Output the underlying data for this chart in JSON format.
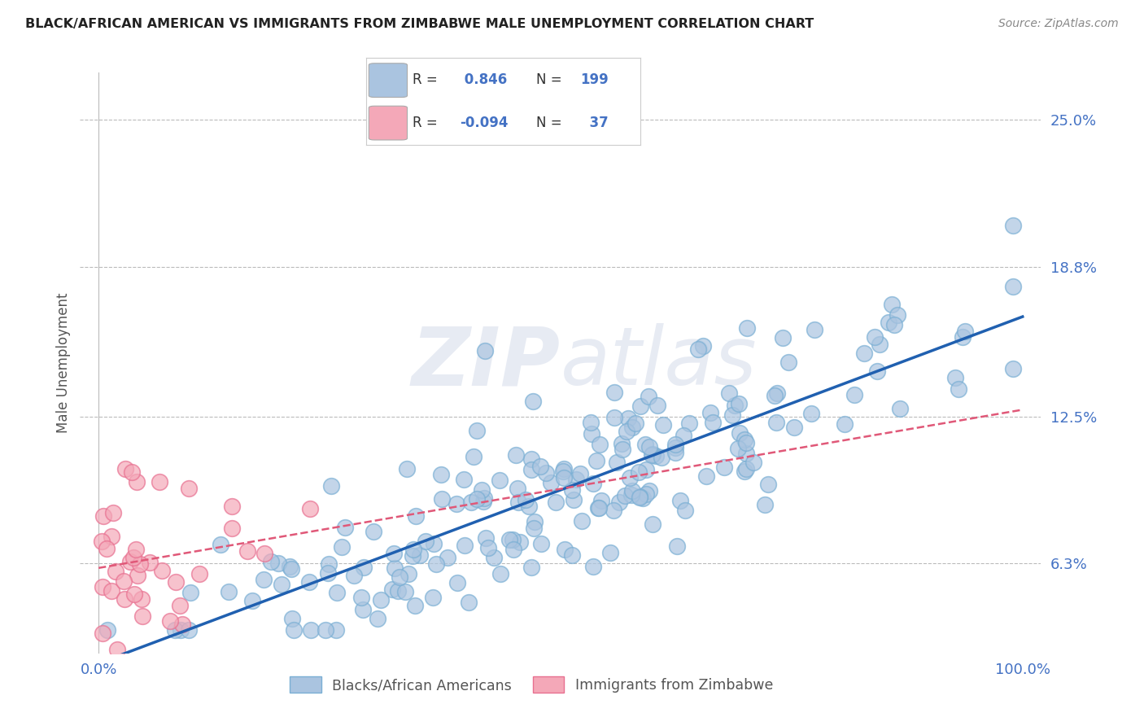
{
  "title": "BLACK/AFRICAN AMERICAN VS IMMIGRANTS FROM ZIMBABWE MALE UNEMPLOYMENT CORRELATION CHART",
  "source": "Source: ZipAtlas.com",
  "ylabel": "Male Unemployment",
  "xlim": [
    -2,
    102
  ],
  "ylim": [
    2.5,
    27
  ],
  "yticks": [
    6.3,
    12.5,
    18.8,
    25.0
  ],
  "ytick_labels": [
    "6.3%",
    "12.5%",
    "18.8%",
    "25.0%"
  ],
  "xticks": [
    0,
    100
  ],
  "xtick_labels": [
    "0.0%",
    "100.0%"
  ],
  "blue_R": 0.846,
  "blue_N": 199,
  "pink_R": -0.094,
  "pink_N": 37,
  "blue_color": "#aac4e0",
  "blue_edge_color": "#7aafd4",
  "pink_color": "#f4a8b8",
  "pink_edge_color": "#e87090",
  "blue_line_color": "#2060b0",
  "pink_line_color": "#e05878",
  "legend_label_blue": "Blacks/African Americans",
  "legend_label_pink": "Immigrants from Zimbabwe",
  "watermark_zip": "ZIP",
  "watermark_atlas": "atlas",
  "background_color": "#ffffff",
  "grid_color": "#bbbbbb",
  "title_color": "#222222",
  "axis_label_color": "#555555",
  "tick_label_color": "#4472c4",
  "annotation_color": "#4472c4",
  "seed_blue": 42,
  "seed_pink": 7,
  "blue_x_mean": 52,
  "blue_x_std": 22,
  "pink_x_mean": 6,
  "pink_x_std": 5
}
